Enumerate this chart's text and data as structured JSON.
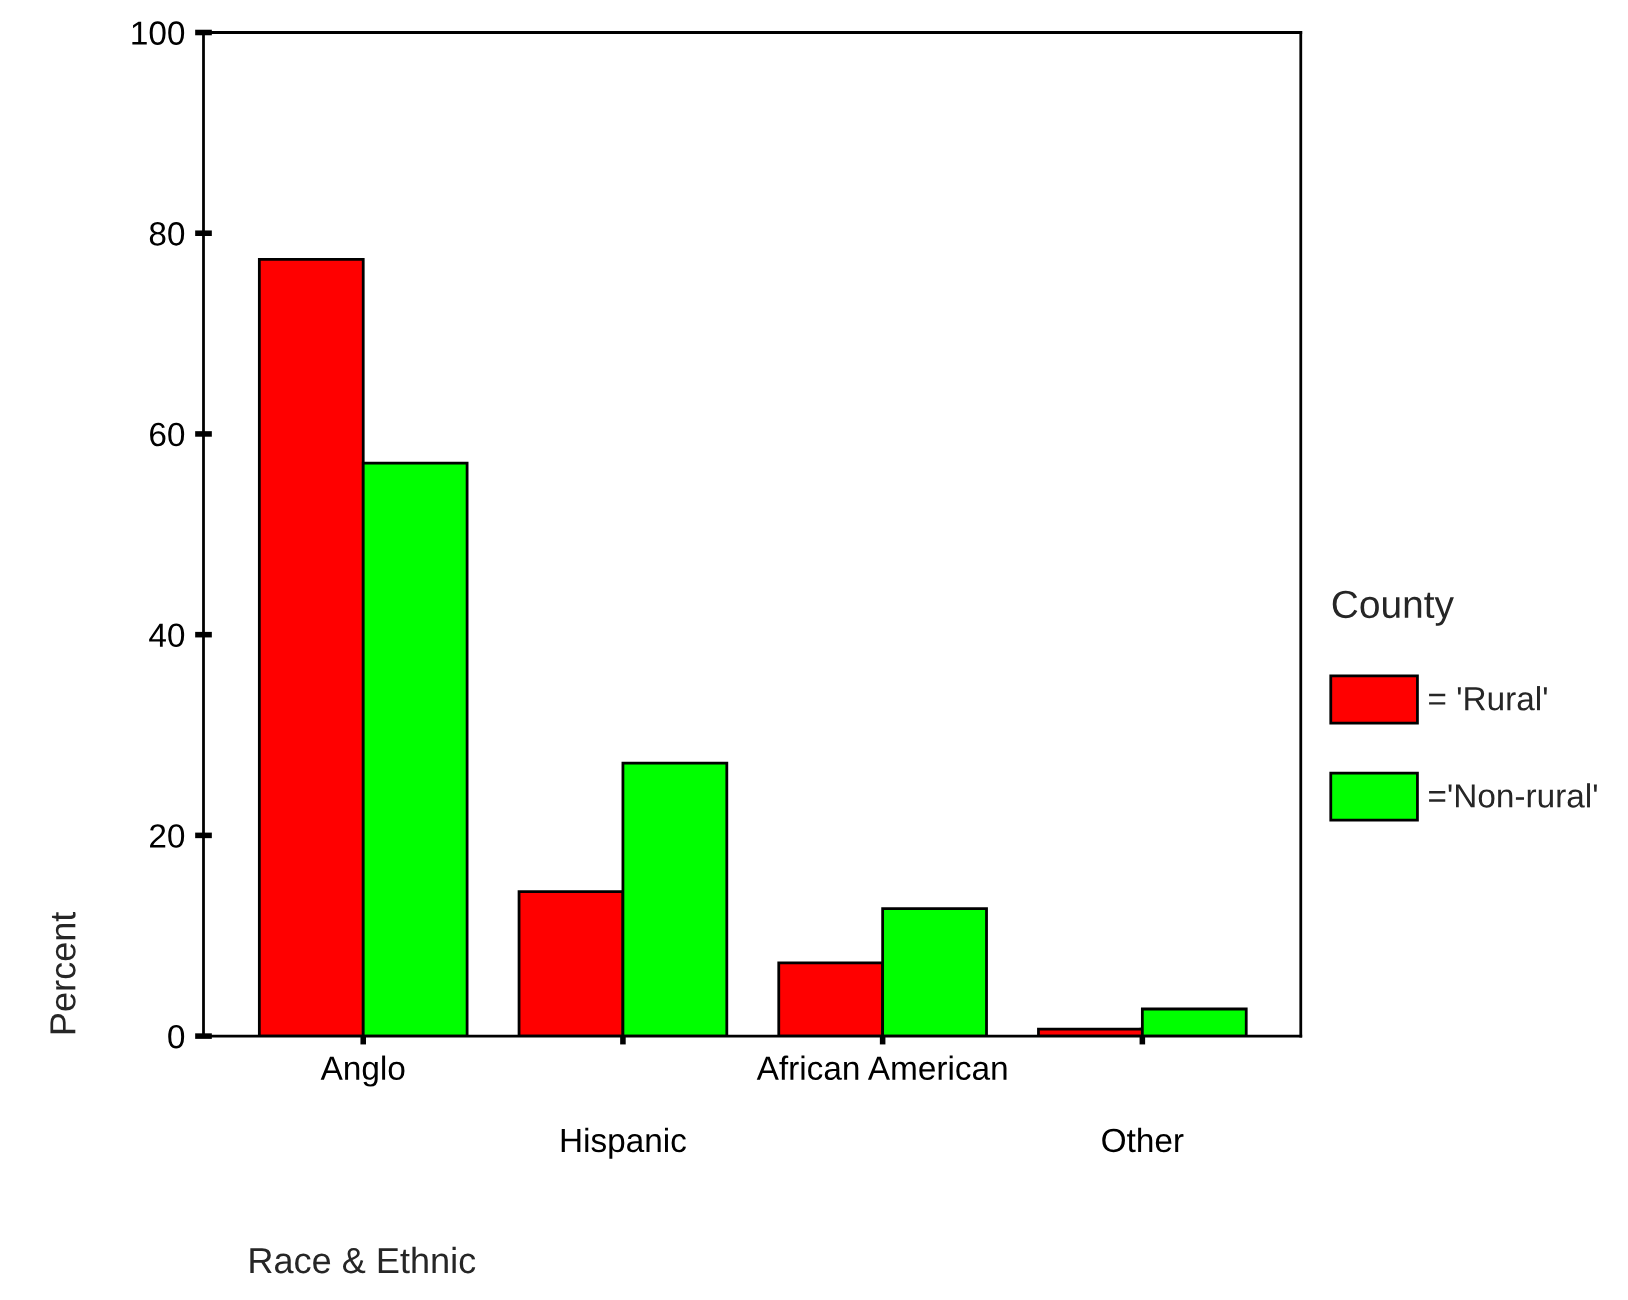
{
  "chart_data": {
    "type": "bar",
    "xlabel": "Race & Ethnic",
    "ylabel": "Percent",
    "legend_title": "County",
    "categories": [
      "Anglo",
      "Hispanic",
      "African American",
      "Other"
    ],
    "series": [
      {
        "name": "= 'Rural'",
        "color": "#ff0000",
        "values": [
          77.4,
          14.4,
          7.3,
          0.7
        ]
      },
      {
        "name": "='Non-rural'",
        "color": "#00ff00",
        "values": [
          57.1,
          27.2,
          12.7,
          2.7
        ]
      }
    ],
    "ylim": [
      0,
      100
    ],
    "yticks": [
      0,
      20,
      40,
      60,
      80,
      100
    ],
    "grid": false,
    "legend": "right"
  }
}
